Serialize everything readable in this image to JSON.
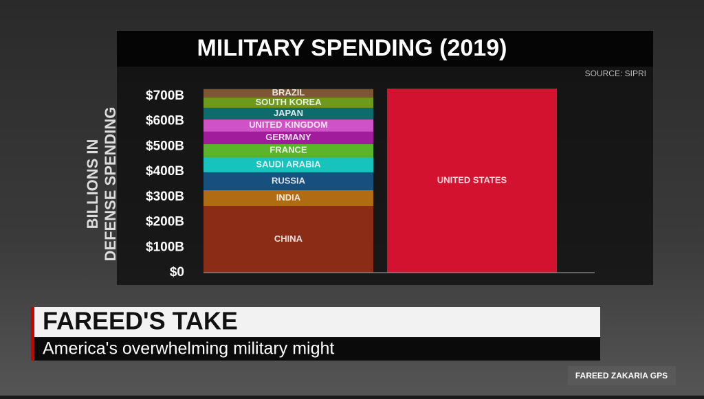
{
  "chart_data": {
    "type": "stacked_bar",
    "title": "MILITARY SPENDING (2019)",
    "source": "SOURCE: SIPRI",
    "y_label": [
      "BILLIONS IN",
      "DEFENSE SPENDING"
    ],
    "ylim": [
      0,
      700
    ],
    "yticks": [
      {
        "value": 0,
        "label": "$0"
      },
      {
        "value": 100,
        "label": "$100B"
      },
      {
        "value": 200,
        "label": "$200B"
      },
      {
        "value": 300,
        "label": "$300B"
      },
      {
        "value": 400,
        "label": "$400B"
      },
      {
        "value": 500,
        "label": "$500B"
      },
      {
        "value": 600,
        "label": "$600B"
      },
      {
        "value": 700,
        "label": "$700B"
      }
    ],
    "stacks": [
      [
        {
          "name": "CHINA",
          "color": "#8a2c16",
          "value": 264
        },
        {
          "name": "INDIA",
          "color": "#b06c12",
          "value": 63
        },
        {
          "name": "RUSSIA",
          "color": "#174f7e",
          "value": 71
        },
        {
          "name": "SAUDI ARABIA",
          "color": "#17c4bd",
          "value": 60
        },
        {
          "name": "FRANCE",
          "color": "#5ab52a",
          "value": 52
        },
        {
          "name": "GERMANY",
          "color": "#a01c9c",
          "value": 49
        },
        {
          "name": "UNITED KINGDOM",
          "color": "#cf52c6",
          "value": 49
        },
        {
          "name": "JAPAN",
          "color": "#0e6b6b",
          "value": 46
        },
        {
          "name": "SOUTH KOREA",
          "color": "#6e9a1c",
          "value": 41
        },
        {
          "name": "BRAZIL",
          "color": "#7d5632",
          "value": 33
        }
      ],
      [
        {
          "name": "UNITED STATES",
          "color": "#d3122f",
          "value": 730
        }
      ]
    ]
  },
  "lower_third": {
    "headline": "FAREED'S TAKE",
    "subline": "America's overwhelming military might"
  },
  "network_tag": "FAREED ZAKARIA GPS"
}
